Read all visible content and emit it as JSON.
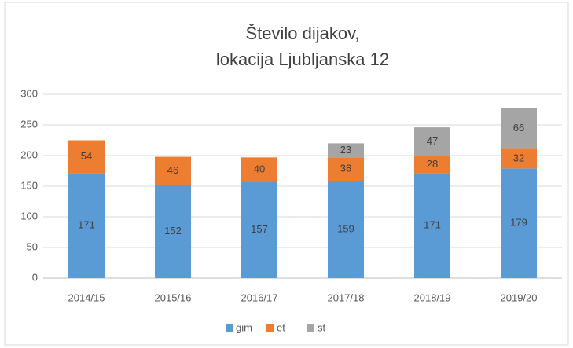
{
  "chart_data": {
    "type": "stacked_bar",
    "title": [
      "Število dijakov,",
      "lokacija  Ljubljanska 12"
    ],
    "categories": [
      "2014/15",
      "2015/16",
      "2016/17",
      "2017/18",
      "2018/19",
      "2019/20"
    ],
    "series": [
      {
        "name": "gim",
        "color": "#5b9bd5",
        "values": [
          171,
          152,
          157,
          159,
          171,
          179
        ]
      },
      {
        "name": "et",
        "color": "#ed7d31",
        "values": [
          54,
          46,
          40,
          38,
          28,
          32
        ]
      },
      {
        "name": "st",
        "color": "#a5a5a5",
        "values": [
          null,
          null,
          null,
          23,
          47,
          66
        ]
      }
    ],
    "ylim": [
      0,
      300
    ],
    "yticks": [
      0,
      50,
      100,
      150,
      200,
      250,
      300
    ],
    "grid": true,
    "legend": "bottom"
  }
}
